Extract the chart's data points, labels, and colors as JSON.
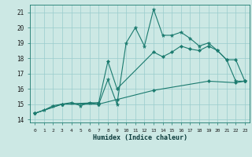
{
  "xlabel": "Humidex (Indice chaleur)",
  "background_color": "#cce8e4",
  "line_color": "#1a7a6e",
  "grid_color": "#99cccc",
  "xlim": [
    -0.5,
    23.5
  ],
  "ylim": [
    13.8,
    21.5
  ],
  "xticks": [
    0,
    1,
    2,
    3,
    4,
    5,
    6,
    7,
    8,
    9,
    10,
    11,
    12,
    13,
    14,
    15,
    16,
    17,
    18,
    19,
    20,
    21,
    22,
    23
  ],
  "yticks": [
    14,
    15,
    16,
    17,
    18,
    19,
    20,
    21
  ],
  "line1_x": [
    0,
    1,
    2,
    3,
    4,
    5,
    6,
    7,
    8,
    9,
    10,
    11,
    12,
    13,
    14,
    15,
    16,
    17,
    18,
    19,
    20,
    21,
    22,
    23
  ],
  "line1_y": [
    14.4,
    14.6,
    14.9,
    15.0,
    15.1,
    14.9,
    15.1,
    15.0,
    16.6,
    15.0,
    19.0,
    20.0,
    18.8,
    21.2,
    19.5,
    19.5,
    19.7,
    19.3,
    18.8,
    19.0,
    18.5,
    17.9,
    16.5,
    16.5
  ],
  "line2_x": [
    0,
    3,
    7,
    8,
    9,
    13,
    14,
    15,
    16,
    17,
    18,
    19,
    20,
    21,
    22,
    23
  ],
  "line2_y": [
    14.4,
    15.0,
    15.1,
    17.8,
    16.0,
    18.4,
    18.1,
    18.4,
    18.8,
    18.6,
    18.5,
    18.8,
    18.5,
    17.9,
    17.9,
    16.5
  ],
  "line3_x": [
    0,
    3,
    7,
    9,
    13,
    19,
    22,
    23
  ],
  "line3_y": [
    14.4,
    15.0,
    15.0,
    15.3,
    15.9,
    16.5,
    16.4,
    16.5
  ]
}
